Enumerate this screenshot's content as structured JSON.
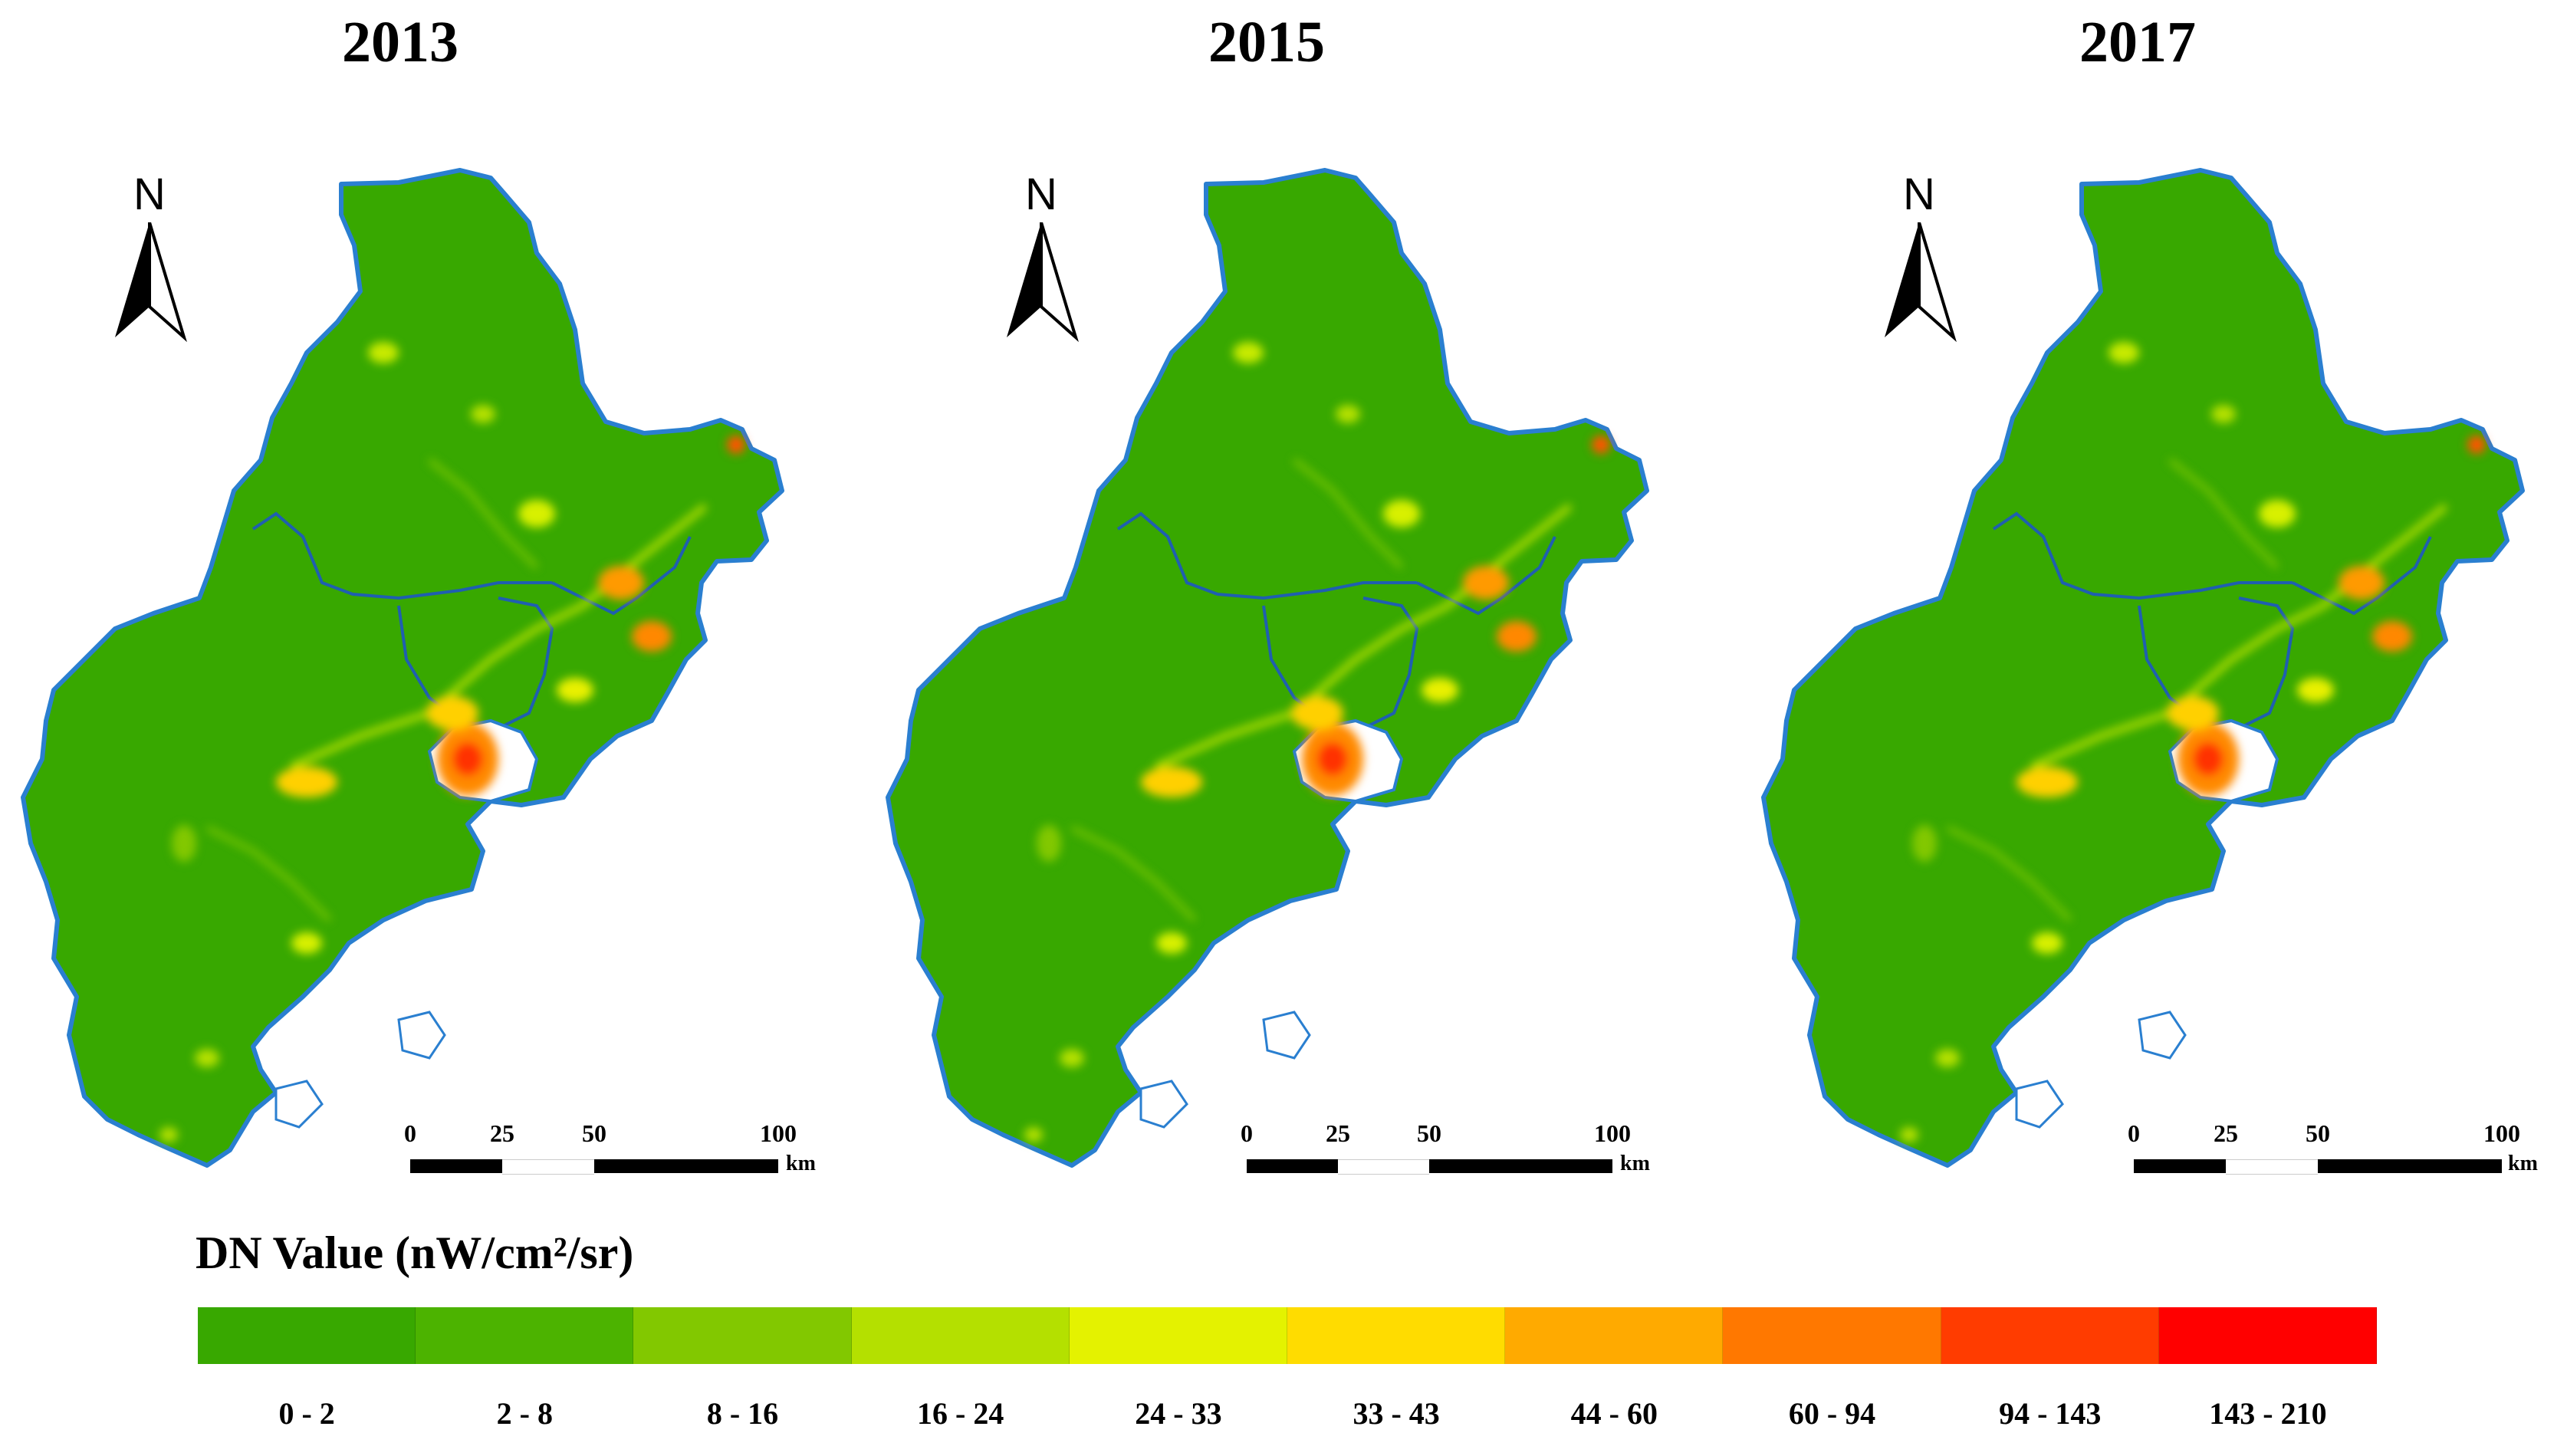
{
  "panels": [
    {
      "year": "2013",
      "scale": {
        "ticks": [
          "0",
          "25",
          "50",
          "100"
        ],
        "unit": "km"
      }
    },
    {
      "year": "2015",
      "scale": {
        "ticks": [
          "0",
          "25",
          "50",
          "100"
        ],
        "unit": "km"
      }
    },
    {
      "year": "2017",
      "scale": {
        "ticks": [
          "0",
          "25",
          "50",
          "100"
        ],
        "unit": "km"
      }
    }
  ],
  "north_label": "N",
  "legend": {
    "title": "DN Value (nW/cm²/sr)",
    "classes": [
      {
        "label": "0 - 2",
        "color": "#38a800"
      },
      {
        "label": "2 - 8",
        "color": "#4cb300"
      },
      {
        "label": "8 - 16",
        "color": "#82c800"
      },
      {
        "label": "16 - 24",
        "color": "#b4e000"
      },
      {
        "label": "24 - 33",
        "color": "#e4f200"
      },
      {
        "label": "33 - 43",
        "color": "#ffdc00"
      },
      {
        "label": "44 - 60",
        "color": "#ffaa00"
      },
      {
        "label": "60 - 94",
        "color": "#ff7800"
      },
      {
        "label": "94 - 143",
        "color": "#ff3c00"
      },
      {
        "label": "143 - 210",
        "color": "#ff0000"
      }
    ]
  },
  "colors": {
    "land": "#38a800",
    "coast": "#2a7fd0",
    "boundary": "#1f5fb0"
  }
}
